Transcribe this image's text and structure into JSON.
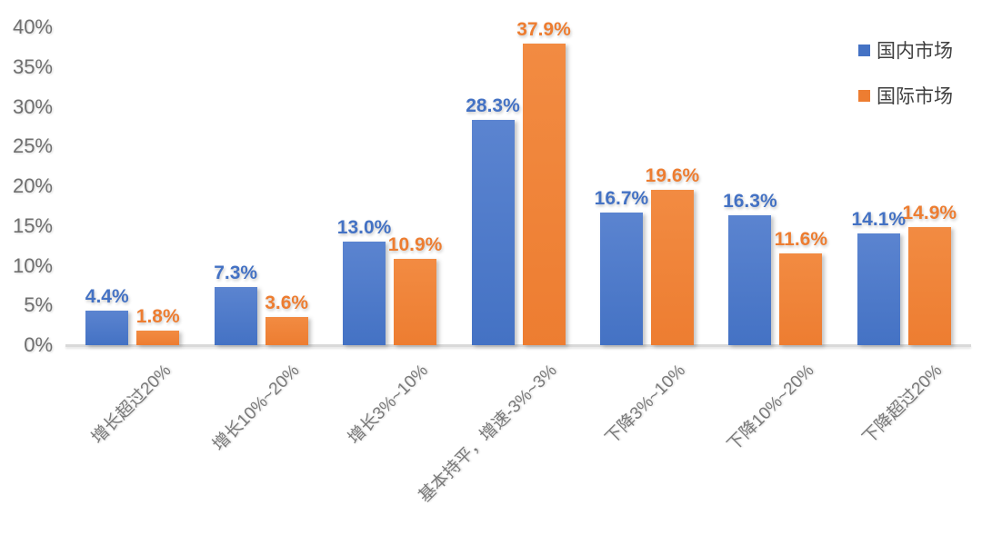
{
  "chart_data": {
    "type": "bar",
    "title": "",
    "categories": [
      "增长超过20%",
      "增长10%~20%",
      "增长3%~10%",
      "基本持平，增速-3%~3%",
      "下降3%~10%",
      "下降10%~20%",
      "下降超过20%"
    ],
    "series": [
      {
        "name": "国内市场",
        "values": [
          4.4,
          7.3,
          13.0,
          28.3,
          16.7,
          16.3,
          14.1
        ],
        "labels": [
          "4.4%",
          "7.3%",
          "13.0%",
          "28.3%",
          "16.7%",
          "16.3%",
          "14.1%"
        ],
        "color": "#4472C4",
        "color_top": "#5b84d0"
      },
      {
        "name": "国际市场",
        "values": [
          1.8,
          3.6,
          10.9,
          37.9,
          19.6,
          11.6,
          14.9
        ],
        "labels": [
          "1.8%",
          "3.6%",
          "10.9%",
          "37.9%",
          "19.6%",
          "11.6%",
          "14.9%"
        ],
        "color": "#ED7D31",
        "color_top": "#f28b42"
      }
    ],
    "y_axis": {
      "min": 0,
      "max": 40,
      "tick_step": 5,
      "ticks": [
        "0%",
        "5%",
        "10%",
        "15%",
        "20%",
        "25%",
        "30%",
        "35%",
        "40%"
      ]
    },
    "legend_position": "top-right",
    "grid": false
  },
  "colors": {
    "background": "#ffffff",
    "axis_text": "#6f6f6f",
    "category_text": "#7a7a7a",
    "baseline": "#d9d9d9",
    "legend_text": "#3f3f3f",
    "domestic_series": "#4472C4",
    "international_series": "#ED7D31"
  }
}
